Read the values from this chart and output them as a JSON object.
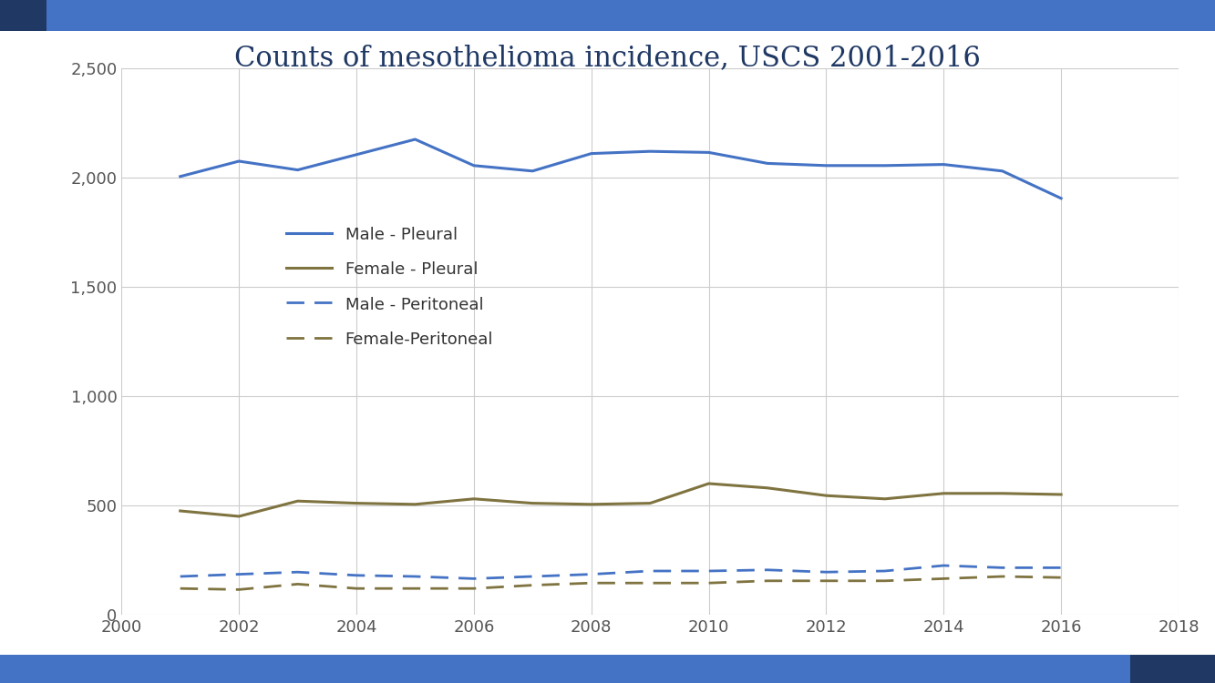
{
  "title": "Counts of mesothelioma incidence, USCS 2001-2016",
  "title_color": "#1F3864",
  "background_color": "#FFFFFF",
  "x_values": [
    2001,
    2002,
    2003,
    2004,
    2005,
    2006,
    2007,
    2008,
    2009,
    2010,
    2011,
    2012,
    2013,
    2014,
    2015,
    2016
  ],
  "male_pleural": [
    2005,
    2075,
    2035,
    2105,
    2175,
    2055,
    2030,
    2110,
    2120,
    2115,
    2065,
    2055,
    2055,
    2060,
    2030,
    1905
  ],
  "female_pleural": [
    475,
    450,
    520,
    510,
    505,
    530,
    510,
    505,
    510,
    600,
    580,
    545,
    530,
    555,
    555,
    550
  ],
  "male_peritoneal": [
    175,
    185,
    195,
    180,
    175,
    165,
    175,
    185,
    200,
    200,
    205,
    195,
    200,
    225,
    215,
    215
  ],
  "female_peritoneal": [
    120,
    115,
    140,
    120,
    120,
    120,
    135,
    145,
    145,
    145,
    155,
    155,
    155,
    165,
    175,
    170
  ],
  "male_pleural_color": "#4472C4",
  "female_pleural_color": "#7F7340",
  "male_peritoneal_color": "#4472C4",
  "female_peritoneal_color": "#7F7340",
  "xlim": [
    2000,
    2018
  ],
  "ylim": [
    0,
    2500
  ],
  "yticks": [
    0,
    500,
    1000,
    1500,
    2000,
    2500
  ],
  "xticks": [
    2000,
    2002,
    2004,
    2006,
    2008,
    2010,
    2012,
    2014,
    2016,
    2018
  ],
  "header_bar_dark": "#1F3864",
  "header_bar_light": "#4472C4",
  "footer_bar_dark": "#1F3864",
  "footer_bar_light": "#4472C4"
}
